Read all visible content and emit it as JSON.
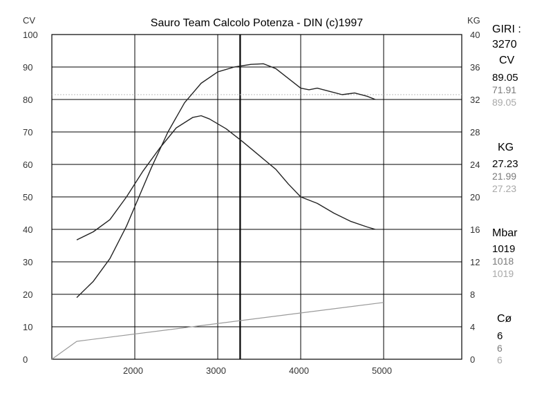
{
  "chart_data": {
    "type": "line",
    "title": "Sauro Team Calcolo Potenza - DIN  (c)1997",
    "y_left_unit": "CV",
    "y_right_unit": "KG",
    "y_left_range": [
      0,
      100
    ],
    "y_right_range": [
      0,
      40
    ],
    "x_range": [
      1000,
      5000
    ],
    "x_ticks": [
      "2000",
      "3000",
      "4000",
      "5000"
    ],
    "y_left_ticks": [
      "0",
      "10",
      "20",
      "30",
      "40",
      "50",
      "60",
      "70",
      "80",
      "90",
      "100"
    ],
    "y_right_ticks": [
      "0",
      "4",
      "8",
      "12",
      "16",
      "20",
      "24",
      "28",
      "32",
      "36",
      "40"
    ],
    "cursor_rpm": 3270,
    "grid": true,
    "series": [
      {
        "axis": "left",
        "x": [
          1300,
          1500,
          1700,
          1900,
          2000,
          2200,
          2400,
          2600,
          2800,
          3000,
          3200,
          3400,
          3550,
          3700,
          3850,
          4000,
          4100,
          4200,
          4350,
          4500,
          4650,
          4800,
          4900
        ],
        "values": [
          19,
          24,
          31,
          41,
          47,
          59,
          70,
          79,
          85,
          88.5,
          90,
          90.8,
          91,
          89.5,
          86.5,
          83.5,
          83,
          83.5,
          82.5,
          81.5,
          82,
          81,
          80
        ]
      },
      {
        "axis": "right",
        "x": [
          1300,
          1500,
          1700,
          1900,
          2100,
          2300,
          2500,
          2700,
          2800,
          2900,
          3100,
          3300,
          3500,
          3700,
          3850,
          4000,
          4200,
          4400,
          4600,
          4800,
          4900
        ],
        "values": [
          14.7,
          15.7,
          17.2,
          20,
          23.2,
          26,
          28.5,
          29.8,
          30,
          29.6,
          28.4,
          26.8,
          25.1,
          23.4,
          21.6,
          20,
          19.2,
          18,
          17,
          16.3,
          16
        ]
      },
      {
        "axis": "left",
        "x": [
          1000,
          1300,
          5000
        ],
        "values": [
          0,
          5.5,
          17.5
        ]
      }
    ]
  },
  "readout": {
    "rpm_label": "GIRI :",
    "rpm_value": "3270",
    "cv_label": "CV",
    "cv_values": [
      "89.05",
      "71.91",
      "89.05"
    ],
    "kg_label": "KG",
    "kg_values": [
      "27.23",
      "21.99",
      "27.23"
    ],
    "mbar_label": "Mbar",
    "mbar_values": [
      "1019",
      "1018",
      "1019"
    ],
    "c_label": "Cø",
    "c_values": [
      "6",
      "6",
      "6"
    ]
  },
  "colors": {
    "grid": "#000000",
    "curve": "#222222",
    "ref_line": "#999999",
    "secondary_text": "#7a7a7a",
    "tertiary_text": "#a8a8a8"
  }
}
